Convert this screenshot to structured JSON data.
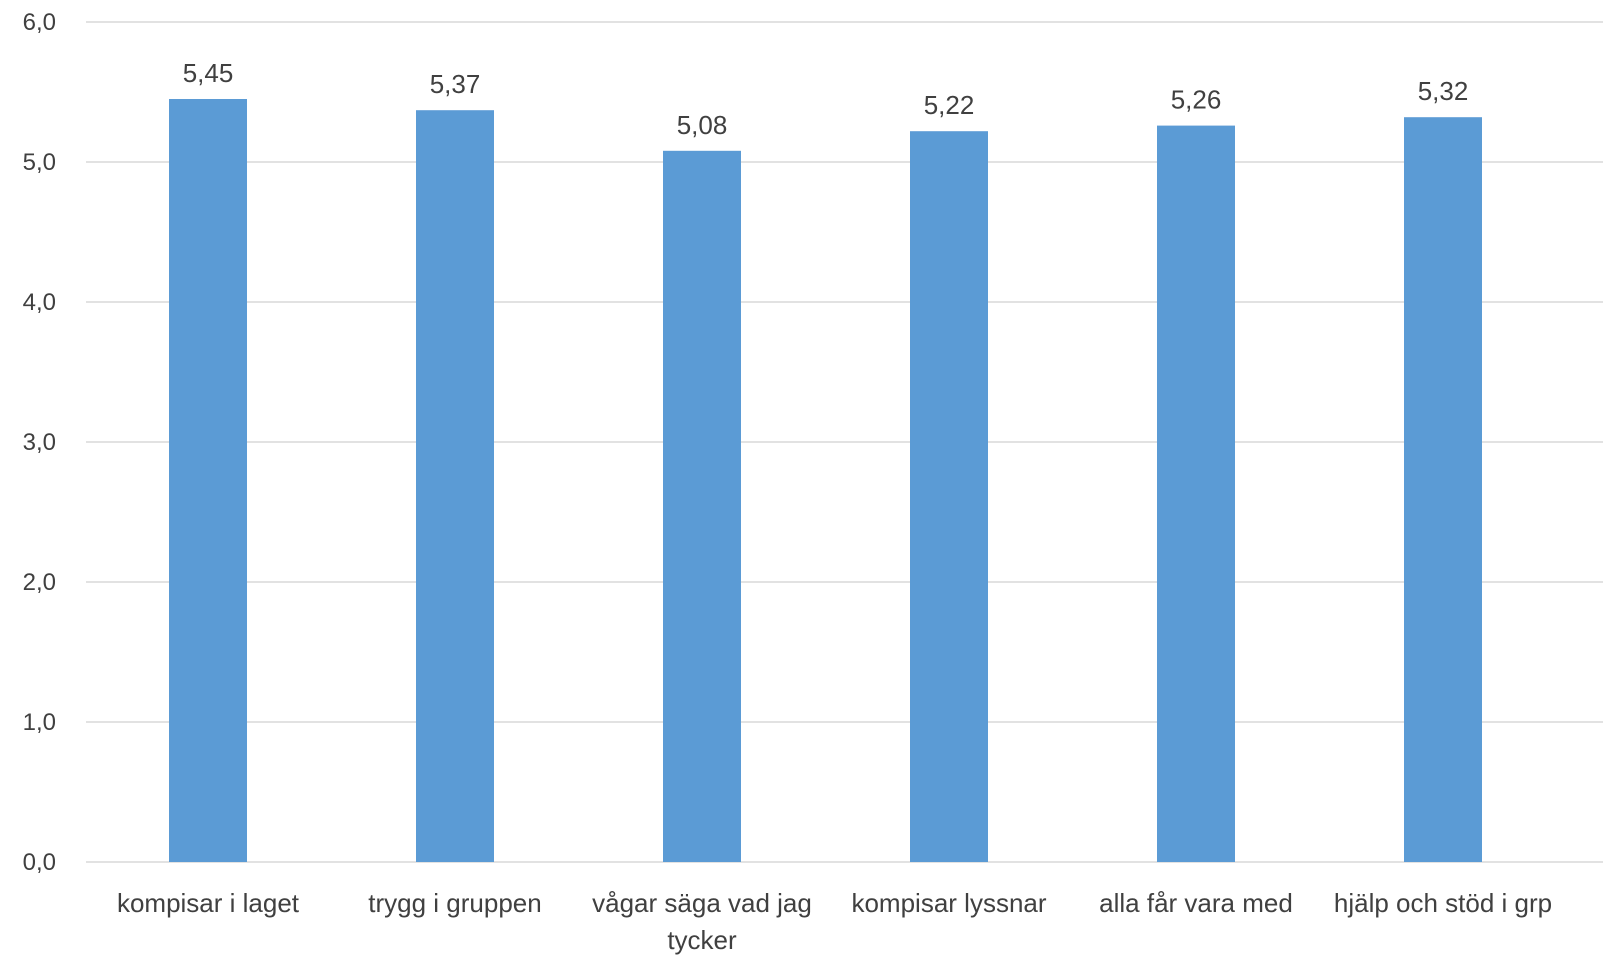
{
  "chart_data": {
    "type": "bar",
    "title": "",
    "xlabel": "",
    "ylabel": "",
    "categories": [
      "kompisar i laget",
      "trygg i gruppen",
      "vågar säga vad jag tycker",
      "kompisar lyssnar",
      "alla får vara med",
      "hjälp och stöd i grp"
    ],
    "category_lines": [
      [
        "kompisar i laget"
      ],
      [
        "trygg i gruppen"
      ],
      [
        "vågar säga vad jag",
        "tycker"
      ],
      [
        "kompisar lyssnar"
      ],
      [
        "alla får vara med"
      ],
      [
        "hjälp och stöd i grp"
      ]
    ],
    "values": [
      5.45,
      5.37,
      5.08,
      5.22,
      5.26,
      5.32
    ],
    "data_labels": [
      "5,45",
      "5,37",
      "5,08",
      "5,22",
      "5,26",
      "5,32"
    ],
    "ylim": [
      0,
      6
    ],
    "yticks": [
      0,
      1,
      2,
      3,
      4,
      5,
      6
    ],
    "ytick_labels": [
      "0,0",
      "1,0",
      "2,0",
      "3,0",
      "4,0",
      "5,0",
      "6,0"
    ],
    "grid": true,
    "legend": "none",
    "bar_color": "#5b9bd5"
  }
}
